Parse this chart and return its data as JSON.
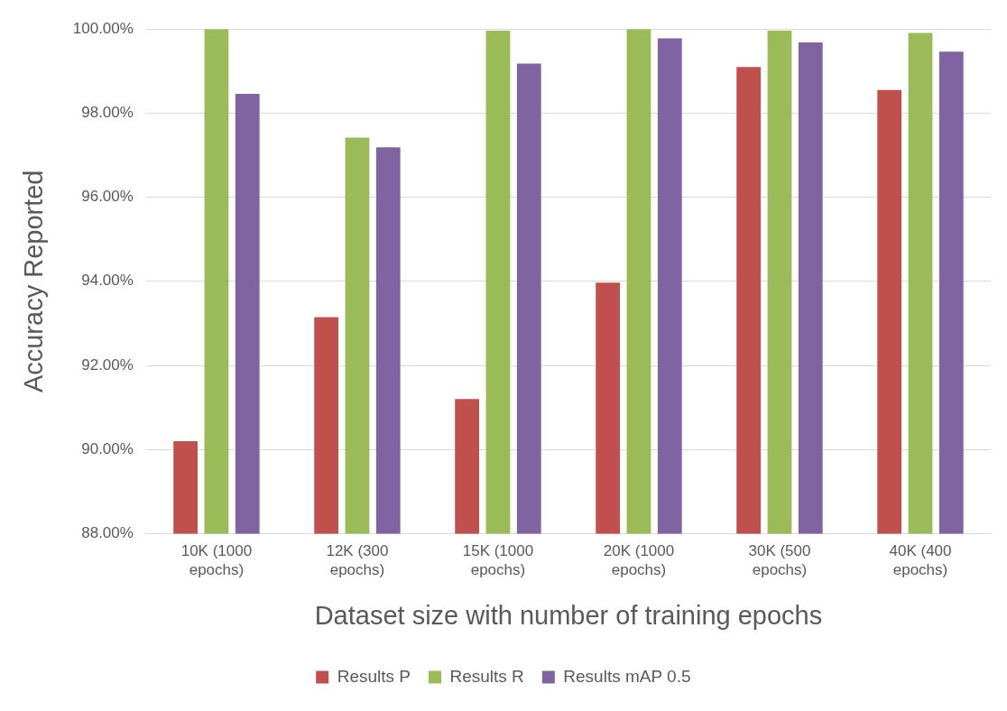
{
  "chart_data": {
    "type": "bar",
    "xlabel": "Dataset size with number of training epochs",
    "ylabel": "Accuracy Reported",
    "categories": [
      "10K (1000 epochs)",
      "12K (300 epochs)",
      "15K (1000 epochs)",
      "20K (1000 epochs)",
      "30K (500 epochs)",
      "40K (400 epochs)"
    ],
    "series": [
      {
        "name": "Results P",
        "color": "#c0504d",
        "values": [
          90.2,
          93.15,
          91.2,
          93.97,
          99.1,
          98.55
        ]
      },
      {
        "name": "Results R",
        "color": "#9bbb59",
        "values": [
          100,
          97.42,
          99.96,
          100,
          99.96,
          99.91
        ]
      },
      {
        "name": "Results mAP 0.5",
        "color": "#8064a2",
        "values": [
          98.46,
          97.19,
          99.18,
          99.78,
          99.68,
          99.46
        ]
      }
    ],
    "ylim": [
      88,
      100
    ],
    "yticks": [
      {
        "value": 88,
        "label": "88.00%"
      },
      {
        "value": 90,
        "label": "90.00%"
      },
      {
        "value": 92,
        "label": "92.00%"
      },
      {
        "value": 94,
        "label": "94.00%"
      },
      {
        "value": 96,
        "label": "96.00%"
      },
      {
        "value": 98,
        "label": "98.00%"
      },
      {
        "value": 100,
        "label": "100.00%"
      }
    ],
    "grid": "y",
    "legend": "bottom"
  }
}
